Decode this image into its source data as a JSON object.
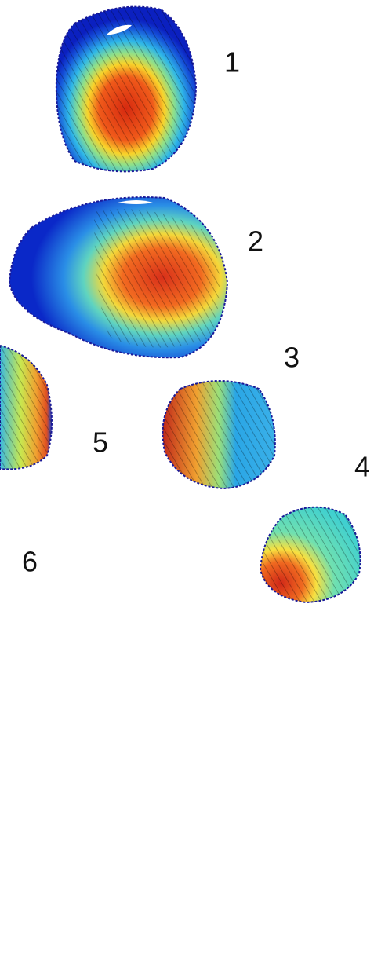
{
  "labels": [
    "1",
    "2",
    "3",
    "4",
    "5",
    "6"
  ]
}
